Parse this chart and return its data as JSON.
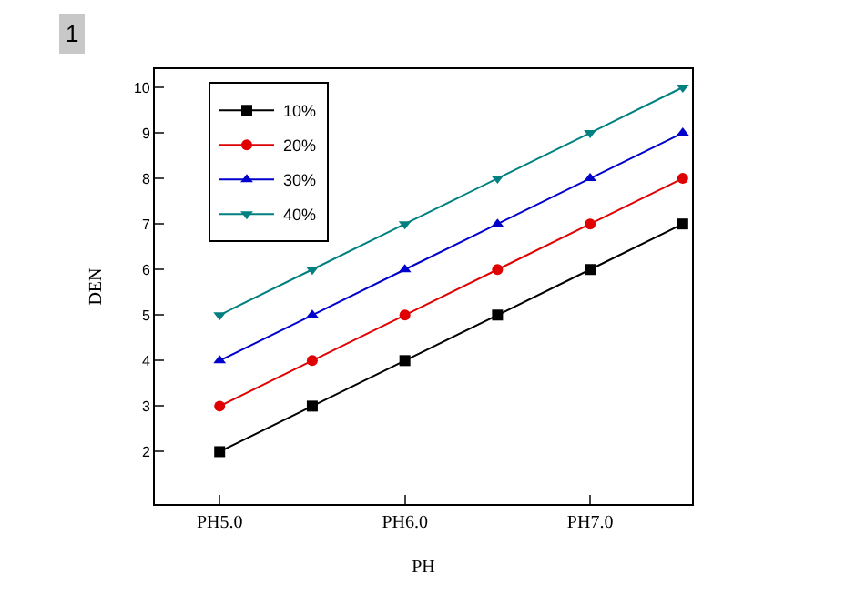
{
  "chart_data": {
    "type": "line",
    "xlabel": "PH",
    "ylabel": "DEN",
    "annotations": [
      "1"
    ],
    "categories": [
      "PH5.0",
      null,
      "PH6.0",
      null,
      "PH7.0",
      null
    ],
    "ylim": [
      0.85,
      10.4
    ],
    "yticks": [
      2,
      3,
      4,
      5,
      6,
      7,
      8,
      9,
      10
    ],
    "legend": "top left",
    "line_style": "solid",
    "series": [
      {
        "name": "10%",
        "color": "#000000",
        "marker": "square",
        "values": [
          2,
          3,
          4,
          5,
          6,
          7
        ]
      },
      {
        "name": "20%",
        "color": "#e00000",
        "marker": "circle",
        "values": [
          3,
          4,
          5,
          6,
          7,
          8
        ]
      },
      {
        "name": "30%",
        "color": "#0000cc",
        "marker": "triangle-up",
        "values": [
          4,
          5,
          6,
          7,
          8,
          9
        ]
      },
      {
        "name": "40%",
        "color": "#008080",
        "marker": "triangle-down",
        "values": [
          5,
          6,
          7,
          8,
          9,
          10
        ]
      }
    ]
  }
}
